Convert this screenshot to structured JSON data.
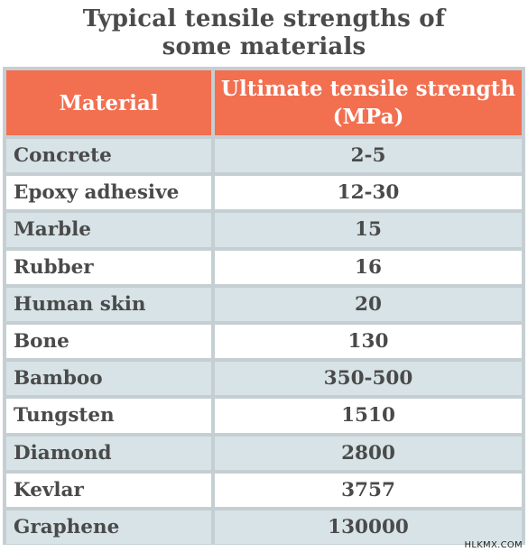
{
  "title": {
    "line1": "Typical tensile strengths of",
    "line2": "some materials"
  },
  "table": {
    "headers": [
      "Material",
      "Ultimate tensile strength (MPa)"
    ],
    "rows": [
      [
        "Concrete",
        "2-5"
      ],
      [
        "Epoxy adhesive",
        "12-30"
      ],
      [
        "Marble",
        "15"
      ],
      [
        "Rubber",
        "16"
      ],
      [
        "Human skin",
        "20"
      ],
      [
        "Bone",
        "130"
      ],
      [
        "Bamboo",
        "350-500"
      ],
      [
        "Tungsten",
        "1510"
      ],
      [
        "Diamond",
        "2800"
      ],
      [
        "Kevlar",
        "3757"
      ],
      [
        "Graphene",
        "130000"
      ]
    ]
  },
  "watermark": "HLKMX.COM",
  "colors": {
    "header_bg": "#f26f50",
    "row_alt_bg": "#d7e3e6",
    "grid": "#c5cfd3",
    "text": "#4a4a4a"
  }
}
